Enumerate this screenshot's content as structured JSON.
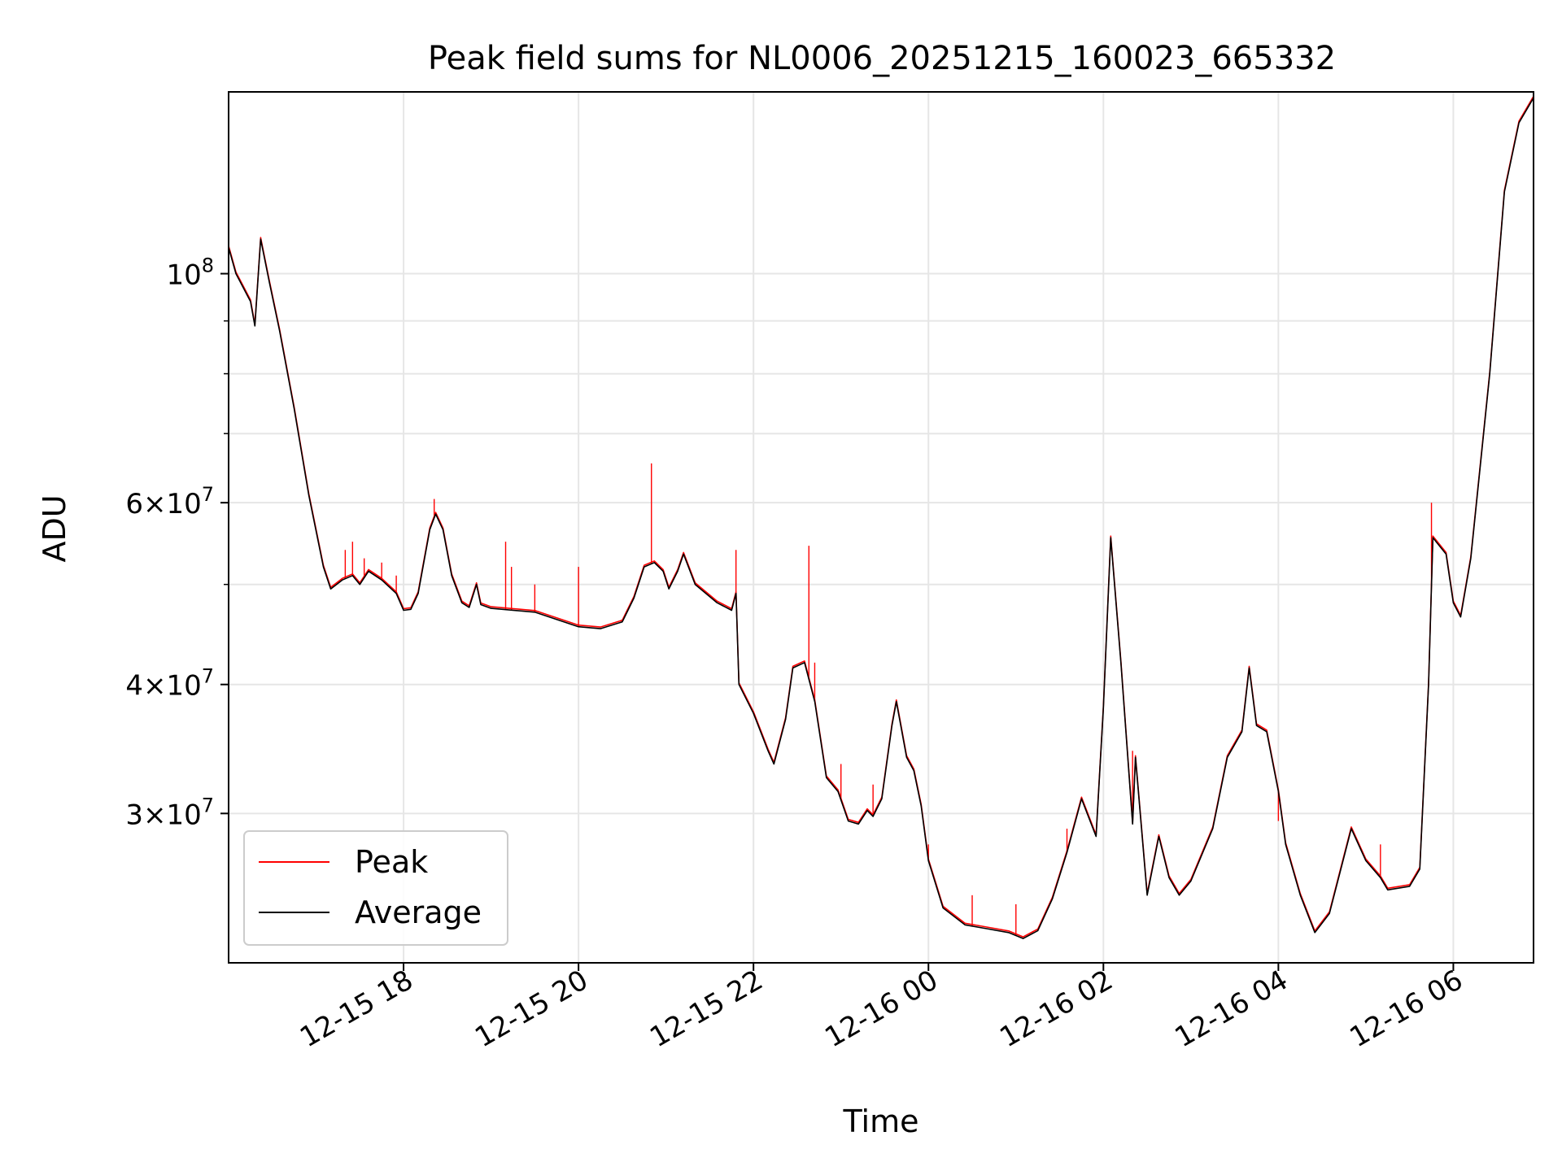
{
  "chart_data": {
    "type": "line",
    "title": "Peak field sums for NL0006_20251215_160023_665332",
    "xlabel": "Time",
    "ylabel": "ADU",
    "yscale": "log",
    "xlim": [
      "2025-12-15 16:00",
      "2025-12-16 06:55"
    ],
    "ylim": [
      21500000,
      150000000
    ],
    "x_ticks": [
      "12-15 18",
      "12-15 20",
      "12-15 22",
      "12-16 00",
      "12-16 02",
      "12-16 04",
      "12-16 06"
    ],
    "y_ticks": [
      {
        "base": "10",
        "exp": "8",
        "mantissa": ""
      },
      {
        "base": "10",
        "exp": "7",
        "mantissa": "6"
      },
      {
        "base": "10",
        "exp": "7",
        "mantissa": "4"
      },
      {
        "base": "10",
        "exp": "7",
        "mantissa": "3"
      }
    ],
    "grid": true,
    "legend_position": "lower-left",
    "colors": {
      "Peak": "#ff0000",
      "Average": "#000000"
    },
    "series": [
      {
        "name": "Average",
        "points": [
          [
            "2025-12-15 16:00",
            106000000
          ],
          [
            "2025-12-15 16:05",
            100000000
          ],
          [
            "2025-12-15 16:15",
            94000000
          ],
          [
            "2025-12-15 16:18",
            89000000
          ],
          [
            "2025-12-15 16:22",
            108000000
          ],
          [
            "2025-12-15 16:28",
            98000000
          ],
          [
            "2025-12-15 16:35",
            88000000
          ],
          [
            "2025-12-15 16:45",
            74000000
          ],
          [
            "2025-12-15 16:55",
            61000000
          ],
          [
            "2025-12-15 17:05",
            52000000
          ],
          [
            "2025-12-15 17:10",
            49500000
          ],
          [
            "2025-12-15 17:18",
            50500000
          ],
          [
            "2025-12-15 17:25",
            51000000
          ],
          [
            "2025-12-15 17:30",
            50000000
          ],
          [
            "2025-12-15 17:36",
            51500000
          ],
          [
            "2025-12-15 17:45",
            50500000
          ],
          [
            "2025-12-15 17:55",
            49000000
          ],
          [
            "2025-12-15 18:00",
            47200000
          ],
          [
            "2025-12-15 18:05",
            47300000
          ],
          [
            "2025-12-15 18:10",
            49000000
          ],
          [
            "2025-12-15 18:18",
            56500000
          ],
          [
            "2025-12-15 18:22",
            58500000
          ],
          [
            "2025-12-15 18:27",
            56500000
          ],
          [
            "2025-12-15 18:33",
            51000000
          ],
          [
            "2025-12-15 18:40",
            48000000
          ],
          [
            "2025-12-15 18:45",
            47500000
          ],
          [
            "2025-12-15 18:50",
            50000000
          ],
          [
            "2025-12-15 18:53",
            47800000
          ],
          [
            "2025-12-15 19:00",
            47400000
          ],
          [
            "2025-12-15 19:30",
            47000000
          ],
          [
            "2025-12-15 20:00",
            45500000
          ],
          [
            "2025-12-15 20:15",
            45300000
          ],
          [
            "2025-12-15 20:30",
            46000000
          ],
          [
            "2025-12-15 20:38",
            48500000
          ],
          [
            "2025-12-15 20:45",
            52000000
          ],
          [
            "2025-12-15 20:52",
            52500000
          ],
          [
            "2025-12-15 20:58",
            51500000
          ],
          [
            "2025-12-15 21:02",
            49500000
          ],
          [
            "2025-12-15 21:08",
            51500000
          ],
          [
            "2025-12-15 21:12",
            53500000
          ],
          [
            "2025-12-15 21:20",
            50000000
          ],
          [
            "2025-12-15 21:35",
            48000000
          ],
          [
            "2025-12-15 21:45",
            47200000
          ],
          [
            "2025-12-15 21:48",
            49000000
          ],
          [
            "2025-12-15 21:50",
            40000000
          ],
          [
            "2025-12-15 22:00",
            37500000
          ],
          [
            "2025-12-15 22:10",
            34500000
          ],
          [
            "2025-12-15 22:14",
            33500000
          ],
          [
            "2025-12-15 22:22",
            37000000
          ],
          [
            "2025-12-15 22:27",
            41500000
          ],
          [
            "2025-12-15 22:35",
            42000000
          ],
          [
            "2025-12-15 22:42",
            38500000
          ],
          [
            "2025-12-15 22:50",
            32500000
          ],
          [
            "2025-12-15 22:58",
            31500000
          ],
          [
            "2025-12-15 23:05",
            29500000
          ],
          [
            "2025-12-15 23:12",
            29300000
          ],
          [
            "2025-12-15 23:18",
            30200000
          ],
          [
            "2025-12-15 23:22",
            29800000
          ],
          [
            "2025-12-15 23:28",
            31000000
          ],
          [
            "2025-12-15 23:35",
            36500000
          ],
          [
            "2025-12-15 23:38",
            38500000
          ],
          [
            "2025-12-15 23:45",
            34000000
          ],
          [
            "2025-12-15 23:50",
            33000000
          ],
          [
            "2025-12-15 23:55",
            30500000
          ],
          [
            "2025-12-16 00:00",
            27000000
          ],
          [
            "2025-12-16 00:10",
            24300000
          ],
          [
            "2025-12-16 00:25",
            23400000
          ],
          [
            "2025-12-16 00:40",
            23200000
          ],
          [
            "2025-12-16 00:55",
            23000000
          ],
          [
            "2025-12-16 01:05",
            22700000
          ],
          [
            "2025-12-16 01:15",
            23100000
          ],
          [
            "2025-12-16 01:25",
            24800000
          ],
          [
            "2025-12-16 01:35",
            27500000
          ],
          [
            "2025-12-16 01:45",
            31000000
          ],
          [
            "2025-12-16 01:55",
            28500000
          ],
          [
            "2025-12-16 02:00",
            38000000
          ],
          [
            "2025-12-16 02:05",
            55500000
          ],
          [
            "2025-12-16 02:12",
            42000000
          ],
          [
            "2025-12-16 02:20",
            29300000
          ],
          [
            "2025-12-16 02:22",
            34000000
          ],
          [
            "2025-12-16 02:30",
            25000000
          ],
          [
            "2025-12-16 02:38",
            28500000
          ],
          [
            "2025-12-16 02:45",
            26000000
          ],
          [
            "2025-12-16 02:52",
            25000000
          ],
          [
            "2025-12-16 03:00",
            25800000
          ],
          [
            "2025-12-16 03:15",
            29000000
          ],
          [
            "2025-12-16 03:25",
            34000000
          ],
          [
            "2025-12-16 03:35",
            36000000
          ],
          [
            "2025-12-16 03:40",
            41500000
          ],
          [
            "2025-12-16 03:45",
            36500000
          ],
          [
            "2025-12-16 03:52",
            36000000
          ],
          [
            "2025-12-16 04:00",
            31500000
          ],
          [
            "2025-12-16 04:05",
            28000000
          ],
          [
            "2025-12-16 04:15",
            25000000
          ],
          [
            "2025-12-16 04:25",
            23000000
          ],
          [
            "2025-12-16 04:35",
            24000000
          ],
          [
            "2025-12-16 04:50",
            29000000
          ],
          [
            "2025-12-16 05:00",
            27000000
          ],
          [
            "2025-12-16 05:10",
            26000000
          ],
          [
            "2025-12-16 05:15",
            25300000
          ],
          [
            "2025-12-16 05:30",
            25500000
          ],
          [
            "2025-12-16 05:37",
            26500000
          ],
          [
            "2025-12-16 05:43",
            40000000
          ],
          [
            "2025-12-16 05:46",
            55500000
          ],
          [
            "2025-12-16 05:55",
            53500000
          ],
          [
            "2025-12-16 06:00",
            48000000
          ],
          [
            "2025-12-16 06:05",
            46500000
          ],
          [
            "2025-12-16 06:12",
            53000000
          ],
          [
            "2025-12-16 06:25",
            80000000
          ],
          [
            "2025-12-16 06:35",
            120000000
          ],
          [
            "2025-12-16 06:45",
            140000000
          ],
          [
            "2025-12-16 06:55",
            148000000
          ]
        ]
      },
      {
        "name": "Peak",
        "spikes": [
          [
            "2025-12-15 17:20",
            54000000
          ],
          [
            "2025-12-15 17:25",
            55000000
          ],
          [
            "2025-12-15 17:33",
            53000000
          ],
          [
            "2025-12-15 17:45",
            52500000
          ],
          [
            "2025-12-15 17:55",
            51000000
          ],
          [
            "2025-12-15 18:21",
            60500000
          ],
          [
            "2025-12-15 19:10",
            55000000
          ],
          [
            "2025-12-15 19:14",
            52000000
          ],
          [
            "2025-12-15 19:30",
            50000000
          ],
          [
            "2025-12-15 20:00",
            52000000
          ],
          [
            "2025-12-15 20:50",
            65500000
          ],
          [
            "2025-12-15 21:48",
            54000000
          ],
          [
            "2025-12-15 22:38",
            54500000
          ],
          [
            "2025-12-15 22:42",
            42000000
          ],
          [
            "2025-12-15 23:00",
            33500000
          ],
          [
            "2025-12-15 23:22",
            32000000
          ],
          [
            "2025-12-16 00:00",
            28000000
          ],
          [
            "2025-12-16 00:30",
            25000000
          ],
          [
            "2025-12-16 01:00",
            24500000
          ],
          [
            "2025-12-16 01:35",
            29000000
          ],
          [
            "2025-12-16 02:20",
            34500000
          ],
          [
            "2025-12-16 04:00",
            29500000
          ],
          [
            "2025-12-16 05:10",
            28000000
          ],
          [
            "2025-12-16 05:45",
            60000000
          ]
        ]
      }
    ]
  }
}
